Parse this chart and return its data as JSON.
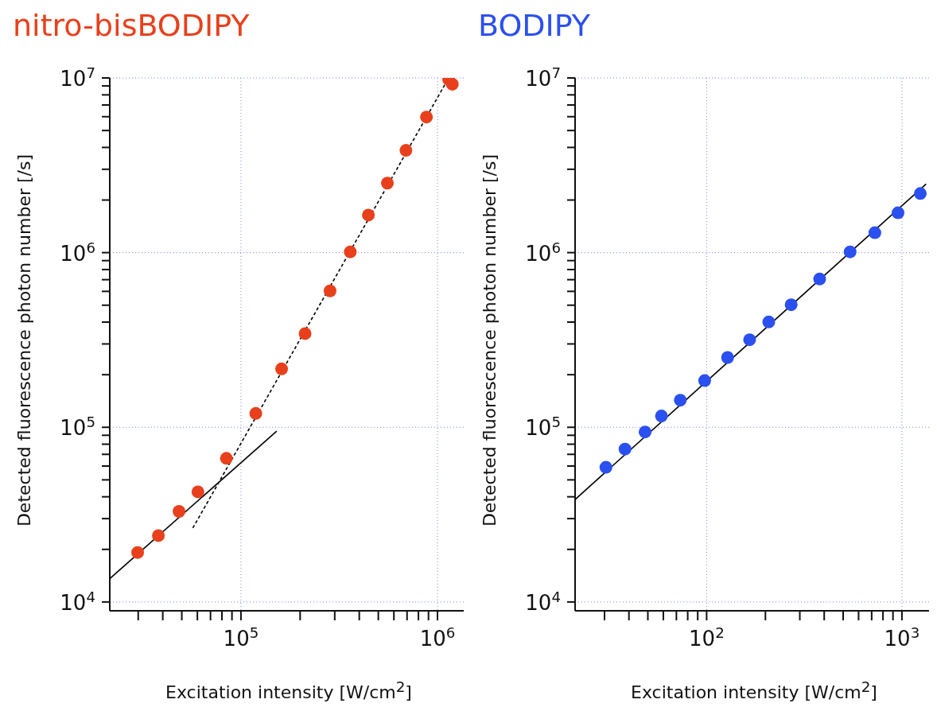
{
  "chart_data": [
    {
      "type": "scatter",
      "title": "nitro-bisBODIPY",
      "xlabel": "Excitation intensity [W/cm$^{2}$]",
      "ylabel": "Detected fluorescence photon number [/s]",
      "log": "xy",
      "grid": true,
      "marker": "circle",
      "xlim": [
        21500,
        1360000
      ],
      "ylim": [
        8900,
        10000000
      ],
      "xticks": [
        {
          "value": 30000,
          "label": null
        },
        {
          "value": 40000,
          "label": null
        },
        {
          "value": 50000,
          "label": null
        },
        {
          "value": 60000,
          "label": null
        },
        {
          "value": 70000,
          "label": null
        },
        {
          "value": 80000,
          "label": null
        },
        {
          "value": 90000,
          "label": null
        },
        {
          "value": 100000,
          "label": "10$^{5}$"
        },
        {
          "value": 200000,
          "label": null
        },
        {
          "value": 300000,
          "label": null
        },
        {
          "value": 400000,
          "label": null
        },
        {
          "value": 500000,
          "label": null
        },
        {
          "value": 600000,
          "label": null
        },
        {
          "value": 700000,
          "label": null
        },
        {
          "value": 800000,
          "label": null
        },
        {
          "value": 900000,
          "label": null
        },
        {
          "value": 1000000,
          "label": "10$^{6}$"
        }
      ],
      "yticks": [
        {
          "value": 10000,
          "label": "10$^{4}$"
        },
        {
          "value": 20000,
          "label": null
        },
        {
          "value": 30000,
          "label": null
        },
        {
          "value": 40000,
          "label": null
        },
        {
          "value": 50000,
          "label": null
        },
        {
          "value": 60000,
          "label": null
        },
        {
          "value": 70000,
          "label": null
        },
        {
          "value": 80000,
          "label": null
        },
        {
          "value": 90000,
          "label": null
        },
        {
          "value": 100000,
          "label": "10$^{5}$"
        },
        {
          "value": 200000,
          "label": null
        },
        {
          "value": 300000,
          "label": null
        },
        {
          "value": 400000,
          "label": null
        },
        {
          "value": 500000,
          "label": null
        },
        {
          "value": 600000,
          "label": null
        },
        {
          "value": 700000,
          "label": null
        },
        {
          "value": 800000,
          "label": null
        },
        {
          "value": 900000,
          "label": null
        },
        {
          "value": 1000000,
          "label": "10$^{6}$"
        },
        {
          "value": 2000000,
          "label": null
        },
        {
          "value": 3000000,
          "label": null
        },
        {
          "value": 4000000,
          "label": null
        },
        {
          "value": 5000000,
          "label": null
        },
        {
          "value": 6000000,
          "label": null
        },
        {
          "value": 7000000,
          "label": null
        },
        {
          "value": 8000000,
          "label": null
        },
        {
          "value": 9000000,
          "label": null
        },
        {
          "value": 10000000,
          "label": "10$^{7}$"
        }
      ],
      "series": [
        {
          "color": "#e8401c",
          "x": [
            29800,
            38000,
            48400,
            60400,
            84300,
            119000,
            161000,
            212000,
            284000,
            360000,
            445000,
            556000,
            691000,
            879000,
            1140000,
            1190000
          ],
          "values": [
            19200,
            24000,
            33000,
            42700,
            66400,
            120000,
            216000,
            344000,
            604000,
            1010000,
            1640000,
            2500000,
            3850000,
            5970000,
            9800000,
            9200000
          ]
        },
        {
          "type": "line",
          "color": "#000000",
          "line_style": "solid",
          "marker": "none",
          "x": [
            21500,
            152000
          ],
          "values": [
            13600,
            95000
          ]
        },
        {
          "type": "line",
          "color": "#000000",
          "line_style": "dashed",
          "marker": "none",
          "x": [
            56900,
            1140000
          ],
          "values": [
            26500,
            10000000
          ]
        }
      ]
    },
    {
      "type": "scatter",
      "title": "BODIPY",
      "xlabel": "Excitation intensity [W/cm$^{2}$]",
      "ylabel": "Detected fluorescence photon number [/s]",
      "log": "xy",
      "grid": true,
      "marker": "circle",
      "xlim": [
        21.2,
        1377
      ],
      "ylim": [
        8900,
        10000000
      ],
      "xticks": [
        {
          "value": 30,
          "label": null
        },
        {
          "value": 40,
          "label": null
        },
        {
          "value": 50,
          "label": null
        },
        {
          "value": 60,
          "label": null
        },
        {
          "value": 70,
          "label": null
        },
        {
          "value": 80,
          "label": null
        },
        {
          "value": 90,
          "label": null
        },
        {
          "value": 100,
          "label": "10$^{2}$"
        },
        {
          "value": 200,
          "label": null
        },
        {
          "value": 300,
          "label": null
        },
        {
          "value": 400,
          "label": null
        },
        {
          "value": 500,
          "label": null
        },
        {
          "value": 600,
          "label": null
        },
        {
          "value": 700,
          "label": null
        },
        {
          "value": 800,
          "label": null
        },
        {
          "value": 900,
          "label": null
        },
        {
          "value": 1000,
          "label": "10$^{3}$"
        }
      ],
      "yticks": [
        {
          "value": 10000,
          "label": "10$^{4}$"
        },
        {
          "value": 20000,
          "label": null
        },
        {
          "value": 30000,
          "label": null
        },
        {
          "value": 40000,
          "label": null
        },
        {
          "value": 50000,
          "label": null
        },
        {
          "value": 60000,
          "label": null
        },
        {
          "value": 70000,
          "label": null
        },
        {
          "value": 80000,
          "label": null
        },
        {
          "value": 90000,
          "label": null
        },
        {
          "value": 100000,
          "label": "10$^{5}$"
        },
        {
          "value": 200000,
          "label": null
        },
        {
          "value": 300000,
          "label": null
        },
        {
          "value": 400000,
          "label": null
        },
        {
          "value": 500000,
          "label": null
        },
        {
          "value": 600000,
          "label": null
        },
        {
          "value": 700000,
          "label": null
        },
        {
          "value": 800000,
          "label": null
        },
        {
          "value": 900000,
          "label": null
        },
        {
          "value": 1000000,
          "label": "10$^{6}$"
        },
        {
          "value": 2000000,
          "label": null
        },
        {
          "value": 3000000,
          "label": null
        },
        {
          "value": 4000000,
          "label": null
        },
        {
          "value": 5000000,
          "label": null
        },
        {
          "value": 6000000,
          "label": null
        },
        {
          "value": 7000000,
          "label": null
        },
        {
          "value": 8000000,
          "label": null
        },
        {
          "value": 9000000,
          "label": null
        },
        {
          "value": 10000000,
          "label": "10$^{7}$"
        }
      ],
      "series": [
        {
          "color": "#2b50f0",
          "x": [
            30.5,
            38.2,
            48.4,
            58.7,
            73.3,
            97.7,
            128,
            166,
            208,
            271,
            379,
            543,
            727,
            955,
            1242
          ],
          "values": [
            59000,
            75000,
            94000,
            116000,
            143000,
            185000,
            251000,
            317000,
            401000,
            503000,
            706000,
            1010000,
            1300000,
            1690000,
            2180000
          ]
        },
        {
          "type": "line",
          "color": "#000000",
          "line_style": "solid",
          "marker": "none",
          "x": [
            21.2,
            1330
          ],
          "values": [
            38600,
            2470000
          ]
        }
      ]
    }
  ]
}
